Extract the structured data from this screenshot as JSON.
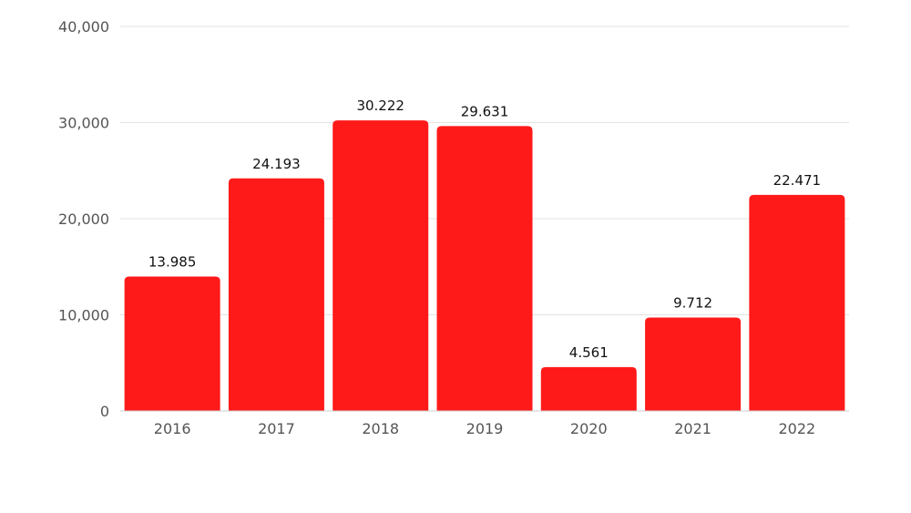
{
  "chart_data": {
    "type": "bar",
    "title": "",
    "xlabel": "",
    "ylabel": "",
    "categories": [
      "2016",
      "2017",
      "2018",
      "2019",
      "2020",
      "2021",
      "2022"
    ],
    "values": [
      13985,
      24193,
      30222,
      29631,
      4561,
      9712,
      22471
    ],
    "value_labels": [
      "13.985",
      "24.193",
      "30.222",
      "29.631",
      "4.561",
      "9.712",
      "22.471"
    ],
    "ylim": [
      0,
      40000
    ],
    "yticks": [
      0,
      10000,
      20000,
      30000,
      40000
    ],
    "ytick_labels": [
      "0",
      "10,000",
      "20,000",
      "30,000",
      "40,000"
    ],
    "grid": true,
    "legend": "none",
    "bar_color": "#ff1a1a"
  }
}
